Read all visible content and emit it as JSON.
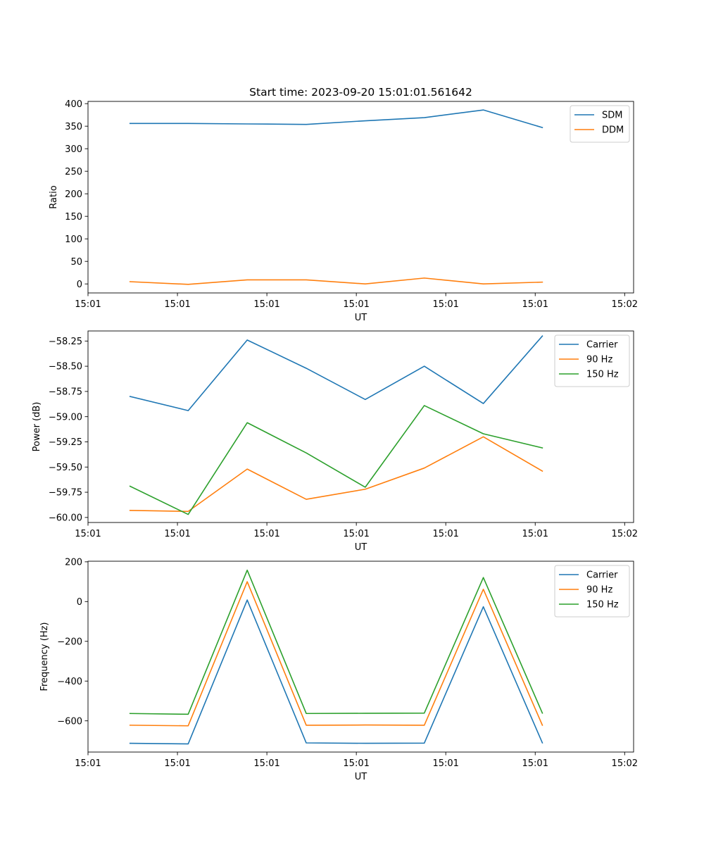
{
  "figure": {
    "title": "Start time: 2023-09-20 15:01:01.561642"
  },
  "chart_data": [
    {
      "id": "ratio",
      "type": "line",
      "title": "Start time: 2023-09-20 15:01:01.561642",
      "xlabel": "UT",
      "ylabel": "Ratio",
      "xlim": [
        0,
        6.1
      ],
      "ylim": [
        -20,
        405
      ],
      "x_ticks": [
        0,
        1,
        2,
        3,
        4,
        5,
        6
      ],
      "x_tick_labels": [
        "15:01",
        "15:01",
        "15:01",
        "15:01",
        "15:01",
        "15:01",
        "15:02"
      ],
      "y_ticks": [
        0,
        50,
        100,
        150,
        200,
        250,
        300,
        350,
        400
      ],
      "y_tick_labels": [
        "0",
        "50",
        "100",
        "150",
        "200",
        "250",
        "300",
        "350",
        "400"
      ],
      "legend_position": "top-right",
      "x": [
        0.47,
        1.12,
        1.78,
        2.44,
        3.1,
        3.76,
        4.42,
        5.08
      ],
      "series": [
        {
          "name": "SDM",
          "color": "#1f77b4",
          "values": [
            356,
            356,
            355,
            354,
            362,
            369,
            386,
            347
          ]
        },
        {
          "name": "DDM",
          "color": "#ff7f0e",
          "values": [
            5,
            -1,
            9,
            9,
            0,
            13,
            0,
            4
          ]
        }
      ]
    },
    {
      "id": "power",
      "type": "line",
      "xlabel": "UT",
      "ylabel": "Power (dB)",
      "xlim": [
        0,
        6.1
      ],
      "ylim": [
        -60.05,
        -58.15
      ],
      "x_ticks": [
        0,
        1,
        2,
        3,
        4,
        5,
        6
      ],
      "x_tick_labels": [
        "15:01",
        "15:01",
        "15:01",
        "15:01",
        "15:01",
        "15:01",
        "15:02"
      ],
      "y_ticks": [
        -60.0,
        -59.75,
        -59.5,
        -59.25,
        -59.0,
        -58.75,
        -58.5,
        -58.25
      ],
      "y_tick_labels": [
        "−60.00",
        "−59.75",
        "−59.50",
        "−59.25",
        "−59.00",
        "−58.75",
        "−58.50",
        "−58.25"
      ],
      "legend_position": "top-right",
      "x": [
        0.47,
        1.12,
        1.78,
        2.44,
        3.1,
        3.76,
        4.42,
        5.08
      ],
      "series": [
        {
          "name": "Carrier",
          "color": "#1f77b4",
          "values": [
            -58.8,
            -58.94,
            -58.24,
            -58.52,
            -58.83,
            -58.5,
            -58.87,
            -58.2
          ]
        },
        {
          "name": "90 Hz",
          "color": "#ff7f0e",
          "values": [
            -59.93,
            -59.94,
            -59.52,
            -59.82,
            -59.72,
            -59.51,
            -59.2,
            -59.54
          ]
        },
        {
          "name": "150 Hz",
          "color": "#2ca02c",
          "values": [
            -59.69,
            -59.97,
            -59.06,
            -59.36,
            -59.7,
            -58.89,
            -59.17,
            -59.31
          ]
        }
      ]
    },
    {
      "id": "frequency",
      "type": "line",
      "xlabel": "UT",
      "ylabel": "Frequency (Hz)",
      "xlim": [
        0,
        6.1
      ],
      "ylim": [
        -757,
        203
      ],
      "x_ticks": [
        0,
        1,
        2,
        3,
        4,
        5,
        6
      ],
      "x_tick_labels": [
        "15:01",
        "15:01",
        "15:01",
        "15:01",
        "15:01",
        "15:01",
        "15:02"
      ],
      "y_ticks": [
        -600,
        -400,
        -200,
        0,
        200
      ],
      "y_tick_labels": [
        "−600",
        "−400",
        "−200",
        "0",
        "200"
      ],
      "legend_position": "top-right",
      "x": [
        0.47,
        1.12,
        1.78,
        2.44,
        3.1,
        3.76,
        4.42,
        5.08
      ],
      "series": [
        {
          "name": "Carrier",
          "color": "#1f77b4",
          "values": [
            -713,
            -716,
            8,
            -711,
            -713,
            -712,
            -26,
            -711
          ]
        },
        {
          "name": "90 Hz",
          "color": "#ff7f0e",
          "values": [
            -622,
            -625,
            100,
            -622,
            -621,
            -622,
            62,
            -622
          ]
        },
        {
          "name": "150 Hz",
          "color": "#2ca02c",
          "values": [
            -563,
            -567,
            158,
            -563,
            -562,
            -561,
            121,
            -561
          ]
        }
      ]
    }
  ]
}
